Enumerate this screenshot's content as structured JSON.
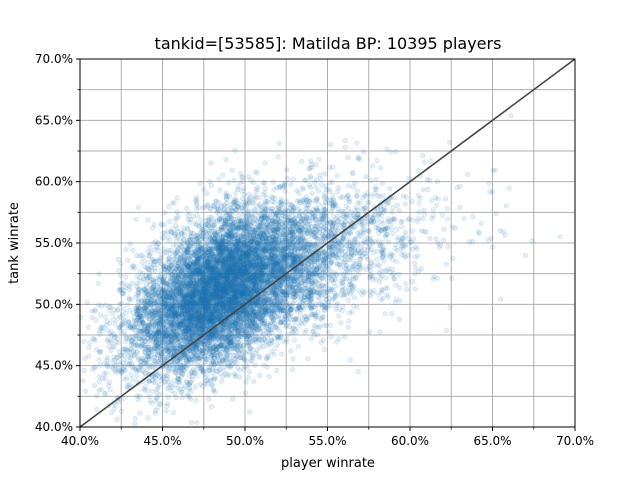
{
  "chart_data": {
    "type": "scatter",
    "title": "tankid=[53585]: Matilda BP: 10395 players",
    "xlabel": "player winrate",
    "ylabel": "tank winrate",
    "xlim": [
      0.4,
      0.7
    ],
    "ylim": [
      0.4,
      0.7
    ],
    "x_ticks": [
      0.4,
      0.45,
      0.5,
      0.55,
      0.6,
      0.65,
      0.7
    ],
    "x_tick_labels": [
      "40.0%",
      "45.0%",
      "50.0%",
      "55.0%",
      "60.0%",
      "65.0%",
      "70.0%"
    ],
    "y_ticks": [
      0.4,
      0.45,
      0.5,
      0.55,
      0.6,
      0.65,
      0.7
    ],
    "y_tick_labels": [
      "40.0%",
      "45.0%",
      "50.0%",
      "55.0%",
      "60.0%",
      "65.0%",
      "70.0%"
    ],
    "x_minor_ticks": [
      0.425,
      0.475,
      0.525,
      0.575,
      0.625,
      0.675
    ],
    "y_minor_ticks": [
      0.425,
      0.475,
      0.525,
      0.575,
      0.625,
      0.675
    ],
    "grid": true,
    "point_count": 10395,
    "point_color": "#1f77b4",
    "point_alpha": 0.12,
    "distribution": {
      "center": [
        0.49,
        0.515
      ],
      "std": [
        0.03,
        0.035
      ],
      "correlation": 0.55
    },
    "reference_line": {
      "from": [
        0.4,
        0.4
      ],
      "to": [
        0.7,
        0.7
      ],
      "color": "#444444"
    }
  }
}
